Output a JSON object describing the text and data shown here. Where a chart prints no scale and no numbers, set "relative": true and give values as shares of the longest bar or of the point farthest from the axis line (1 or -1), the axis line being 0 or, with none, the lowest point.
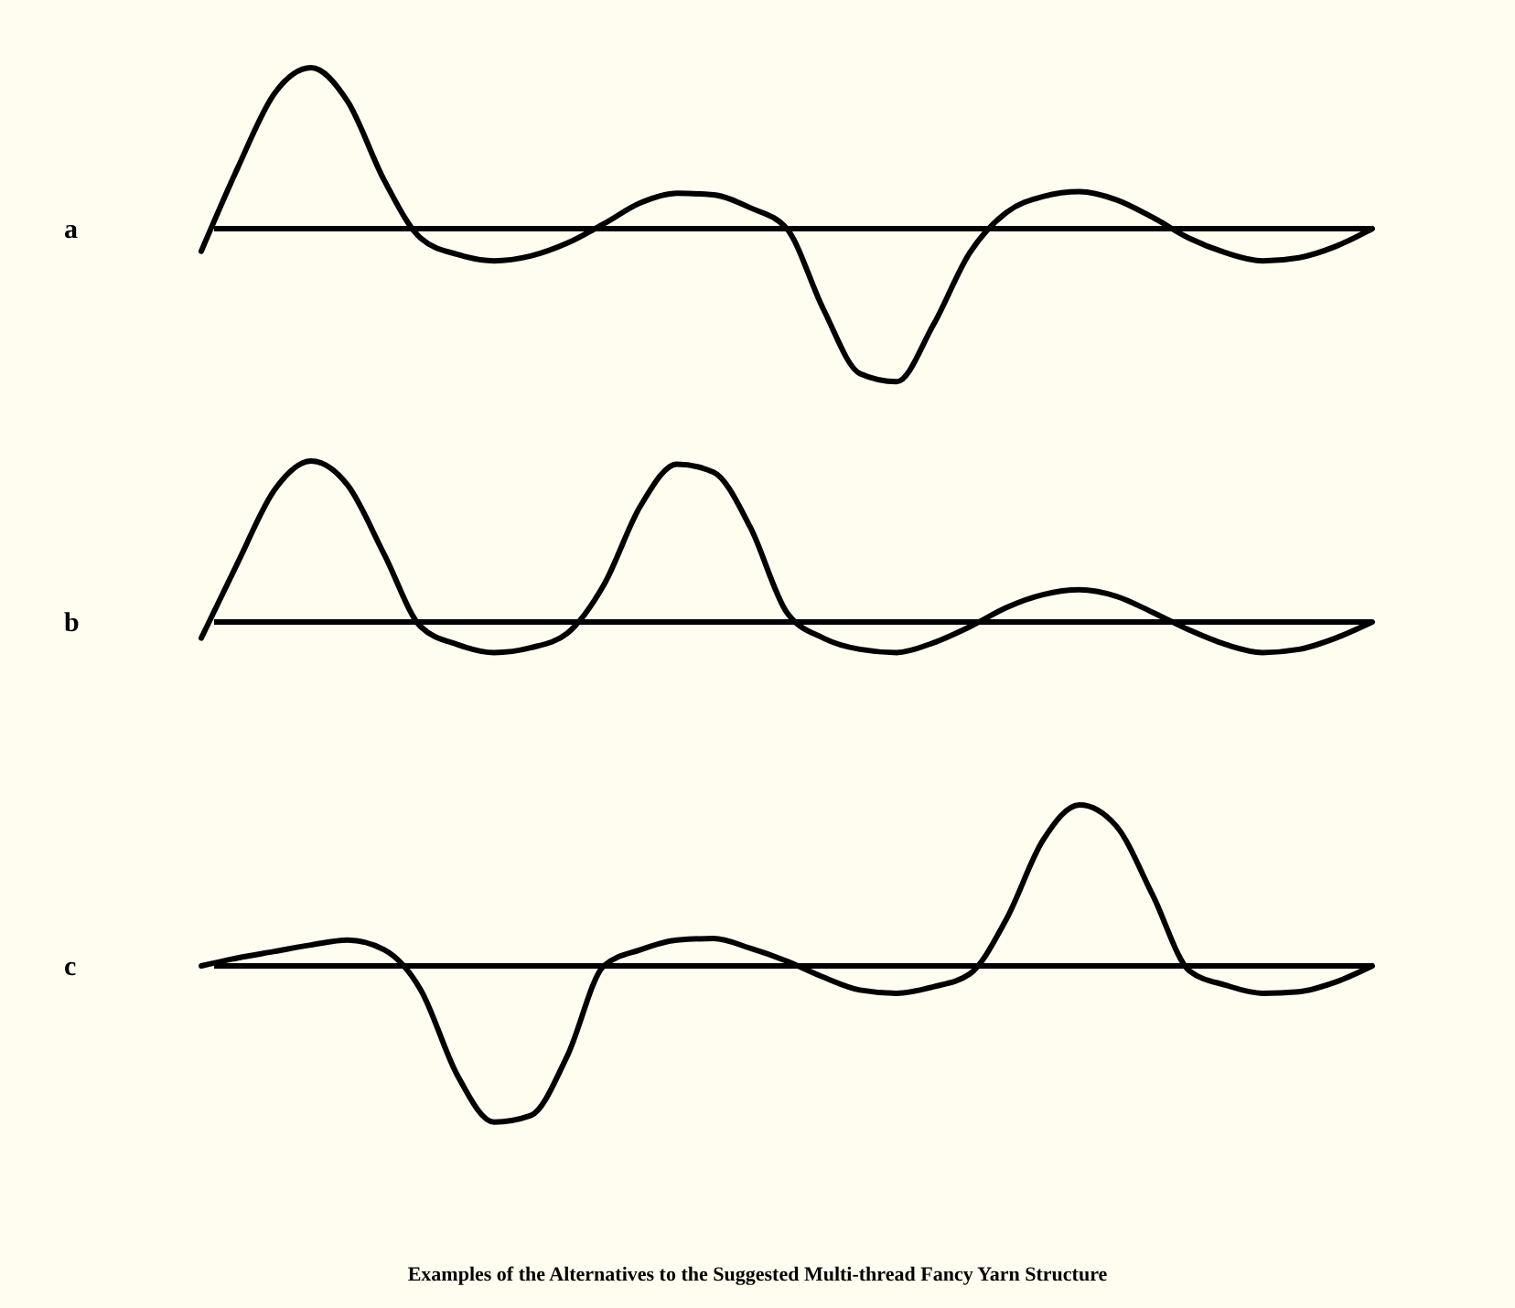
{
  "chart_data": [
    {
      "type": "line",
      "relative": true,
      "ylabel": "a",
      "categories": [
        null,
        null,
        null,
        null,
        null,
        null,
        null,
        null,
        null,
        null,
        null,
        null,
        null,
        null,
        null,
        null,
        null,
        null,
        null,
        null,
        null,
        null,
        null,
        null,
        null,
        null,
        null,
        null,
        null,
        null,
        null,
        null,
        null
      ],
      "series": [
        {
          "color": "#000000",
          "values": [
            -0.14,
            0.38,
            0.84,
            1.0,
            0.79,
            0.3,
            -0.06,
            -0.16,
            -0.2,
            -0.17,
            -0.09,
            0.03,
            0.16,
            0.22,
            0.21,
            0.13,
            0,
            -0.5,
            -0.9,
            -0.95,
            -0.6,
            -0.15,
            0.1,
            0.2,
            0.23,
            0.18,
            0.07,
            -0.06,
            -0.15,
            -0.2,
            -0.18,
            -0.11,
            0
          ]
        }
      ]
    },
    {
      "type": "line",
      "relative": true,
      "ylabel": "b",
      "categories": [
        null,
        null,
        null,
        null,
        null,
        null,
        null,
        null,
        null,
        null,
        null,
        null,
        null,
        null,
        null,
        null,
        null,
        null,
        null,
        null,
        null,
        null,
        null,
        null,
        null,
        null,
        null,
        null,
        null,
        null,
        null,
        null,
        null
      ],
      "series": [
        {
          "color": "#000000",
          "values": [
            -0.1,
            0.37,
            0.82,
            1.0,
            0.85,
            0.42,
            -0.03,
            -0.14,
            -0.19,
            -0.16,
            -0.07,
            0.23,
            0.72,
            0.98,
            0.93,
            0.59,
            0.06,
            -0.1,
            -0.17,
            -0.19,
            -0.13,
            -0.03,
            0.09,
            0.17,
            0.2,
            0.16,
            0.06,
            -0.05,
            -0.14,
            -0.19,
            -0.17,
            -0.1,
            0
          ]
        }
      ]
    },
    {
      "type": "line",
      "relative": true,
      "ylabel": "c",
      "categories": [
        null,
        null,
        null,
        null,
        null,
        null,
        null,
        null,
        null,
        null,
        null,
        null,
        null,
        null,
        null,
        null,
        null,
        null,
        null,
        null,
        null,
        null,
        null,
        null,
        null,
        null,
        null,
        null,
        null,
        null,
        null,
        null,
        null
      ],
      "series": [
        {
          "color": "#000000",
          "values": [
            0,
            0.05,
            0.09,
            0.13,
            0.16,
            0.1,
            -0.15,
            -0.68,
            -0.97,
            -0.93,
            -0.56,
            0,
            0.1,
            0.16,
            0.17,
            0.11,
            0.03,
            -0.07,
            -0.15,
            -0.17,
            -0.13,
            -0.05,
            0.29,
            0.78,
            1.0,
            0.87,
            0.44,
            -0.03,
            -0.12,
            -0.17,
            -0.16,
            -0.1,
            0
          ]
        }
      ],
      "annotations": [
        "Examples of the Alternatives to the Suggested Multi-thread Fancy Yarn Structure"
      ]
    }
  ]
}
